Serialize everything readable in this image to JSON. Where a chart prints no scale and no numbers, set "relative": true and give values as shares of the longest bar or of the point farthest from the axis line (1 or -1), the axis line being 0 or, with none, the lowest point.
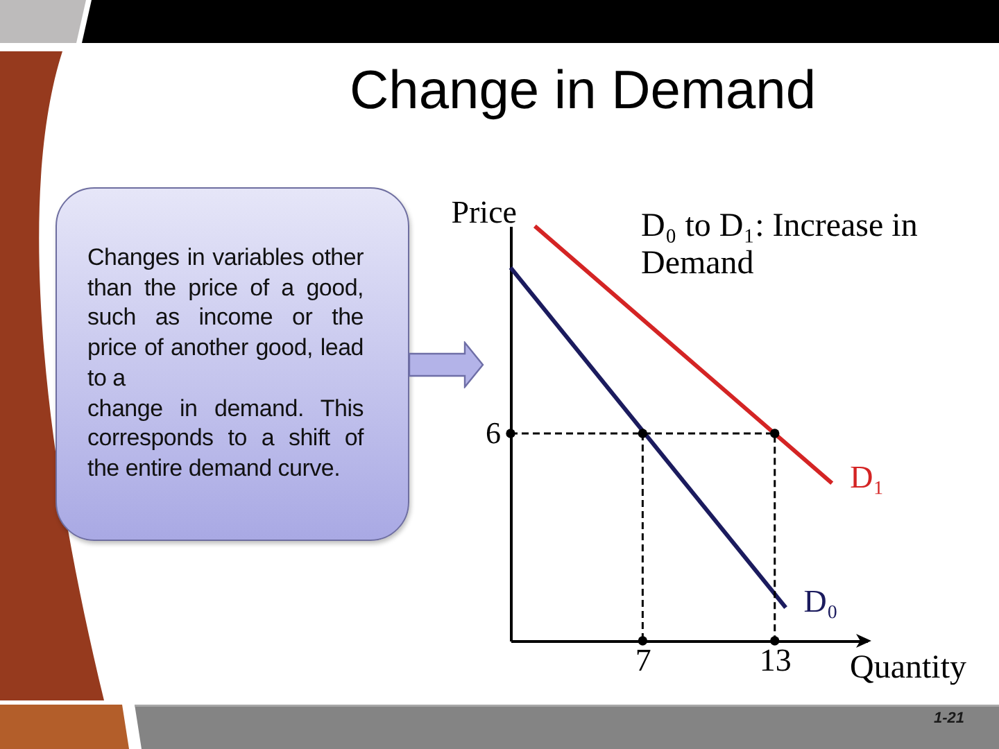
{
  "chart_data": {
    "type": "line",
    "title": "Change in Demand",
    "xlabel": "Quantity",
    "ylabel": "Price",
    "relative": true,
    "xlim": [
      1,
      17.2
    ],
    "xticks": [
      7,
      13
    ],
    "series": [
      {
        "name": "D₀",
        "color": "#1b1b5e",
        "x": [
          1,
          13.5
        ],
        "values": [
          0.9,
          0.08
        ]
      },
      {
        "name": "D₁",
        "color": "#d42424",
        "x": [
          2.1,
          15.6
        ],
        "values": [
          1,
          0.38
        ]
      },
      {
        "color": "#000000",
        "x": [
          1,
          13,
          13
        ],
        "values": [
          0.5,
          0.5,
          0
        ],
        "line_style": "dashed",
        "marker": "circle"
      },
      {
        "color": "#000000",
        "x": [
          7,
          7
        ],
        "values": [
          0.5,
          0
        ],
        "line_style": "dashed",
        "marker": "circle"
      }
    ],
    "annotations": [
      "D₀ to D₁:  Increase in Demand",
      "Changes in variables other than the price of a good, such as income or the price of another good, lead to a\nchange in demand. This corresponds to a shift of the entire demand curve.",
      {
        "text": "6",
        "x": 1,
        "y": 0.5
      },
      "1-21"
    ]
  }
}
